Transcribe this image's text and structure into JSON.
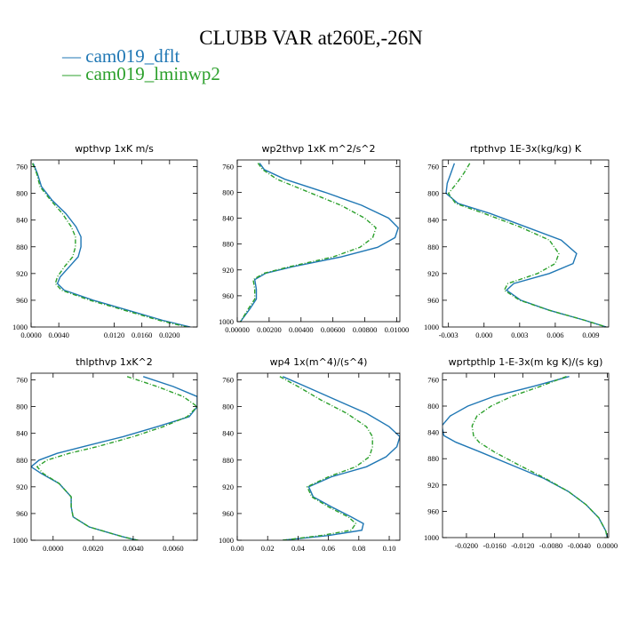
{
  "title": "CLUBB VAR at260E,-26N",
  "legend": [
    {
      "label": "— cam019_dflt",
      "color": "#1f77b4"
    },
    {
      "label": "— cam019_lminwp2",
      "color": "#2ca02c"
    }
  ],
  "chart_data": [
    {
      "type": "line",
      "title": "wpthvp   1xK m/s",
      "xlim": [
        0.0,
        0.024
      ],
      "ylim": [
        1000,
        750
      ],
      "xticks": [
        0.0,
        0.004,
        0.012,
        0.016,
        0.02
      ],
      "xtick_labels": [
        "0.0000",
        "0.0040",
        "0.0120",
        "0.0160",
        "0.0200"
      ],
      "yticks": [
        760,
        800,
        840,
        880,
        920,
        960,
        1000
      ],
      "series": [
        {
          "name": "cam019_dflt",
          "color": "#1f77b4",
          "dashed": false,
          "y": [
            755,
            770,
            790,
            810,
            830,
            850,
            865,
            880,
            895,
            910,
            925,
            935,
            945,
            960,
            975,
            990,
            1000
          ],
          "x": [
            0.0003,
            0.0009,
            0.0015,
            0.003,
            0.005,
            0.0065,
            0.0072,
            0.0072,
            0.0068,
            0.0055,
            0.0042,
            0.0038,
            0.0048,
            0.009,
            0.014,
            0.019,
            0.023
          ]
        },
        {
          "name": "cam019_lminwp2",
          "color": "#2ca02c",
          "dashed": true,
          "y": [
            755,
            770,
            790,
            810,
            830,
            850,
            865,
            880,
            895,
            910,
            925,
            935,
            945,
            960,
            975,
            990,
            1000
          ],
          "x": [
            0.0002,
            0.0008,
            0.0013,
            0.0028,
            0.0045,
            0.0058,
            0.0064,
            0.0064,
            0.006,
            0.0048,
            0.0038,
            0.0035,
            0.0044,
            0.0085,
            0.0135,
            0.0185,
            0.0225
          ]
        }
      ]
    },
    {
      "type": "line",
      "title": "wp2thvp   1xK m^2/s^2",
      "xlim": [
        0.0,
        0.0102
      ],
      "ylim": [
        1000,
        750
      ],
      "xticks": [
        0.0,
        0.002,
        0.004,
        0.006,
        0.008,
        0.01
      ],
      "xtick_labels": [
        "0.00000",
        "0.00200",
        "0.00400",
        "0.00600",
        "0.00800",
        "0.01000"
      ],
      "yticks": [
        760,
        800,
        840,
        880,
        920,
        960,
        1000
      ],
      "series": [
        {
          "name": "cam019_dflt",
          "color": "#1f77b4",
          "dashed": false,
          "y": [
            755,
            765,
            780,
            800,
            820,
            840,
            855,
            870,
            885,
            900,
            915,
            925,
            935,
            950,
            965,
            980,
            1000
          ],
          "x": [
            0.0014,
            0.0017,
            0.003,
            0.0055,
            0.0078,
            0.0095,
            0.0101,
            0.0099,
            0.0088,
            0.0065,
            0.0035,
            0.0018,
            0.0011,
            0.0012,
            0.0012,
            0.0008,
            0.0002
          ]
        },
        {
          "name": "cam019_lminwp2",
          "color": "#2ca02c",
          "dashed": true,
          "y": [
            755,
            765,
            780,
            800,
            820,
            840,
            855,
            870,
            885,
            900,
            915,
            925,
            935,
            950,
            965,
            980,
            1000
          ],
          "x": [
            0.0013,
            0.0016,
            0.0025,
            0.0045,
            0.0065,
            0.008,
            0.0087,
            0.0085,
            0.0077,
            0.006,
            0.0033,
            0.0017,
            0.001,
            0.0011,
            0.0011,
            0.0007,
            0.0002
          ]
        }
      ]
    },
    {
      "type": "line",
      "title": "rtpthvp   1E-3x(kg/kg) K",
      "xlim": [
        -0.0035,
        0.0105
      ],
      "ylim": [
        1000,
        750
      ],
      "xticks": [
        -0.003,
        0.0,
        0.003,
        0.006,
        0.009
      ],
      "xtick_labels": [
        "-0.003",
        "0.000",
        "0.003",
        "0.006",
        "0.009"
      ],
      "yticks": [
        760,
        800,
        840,
        880,
        920,
        960,
        1000
      ],
      "series": [
        {
          "name": "cam019_dflt",
          "color": "#1f77b4",
          "dashed": false,
          "y": [
            755,
            770,
            785,
            800,
            815,
            830,
            850,
            870,
            890,
            905,
            920,
            935,
            945,
            960,
            975,
            990,
            1000
          ],
          "x": [
            -0.0025,
            -0.0028,
            -0.0031,
            -0.0032,
            -0.0022,
            0.0005,
            0.0035,
            0.0065,
            0.0078,
            0.0075,
            0.0055,
            0.0025,
            0.0019,
            0.0031,
            0.0055,
            0.0085,
            0.0103
          ]
        },
        {
          "name": "cam019_lminwp2",
          "color": "#2ca02c",
          "dashed": true,
          "y": [
            755,
            770,
            785,
            800,
            815,
            830,
            850,
            870,
            890,
            905,
            920,
            935,
            945,
            960,
            975,
            990,
            1000
          ],
          "x": [
            -0.0012,
            -0.0017,
            -0.0023,
            -0.003,
            -0.0024,
            0.0,
            0.003,
            0.0055,
            0.0063,
            0.006,
            0.0045,
            0.002,
            0.0017,
            0.003,
            0.0055,
            0.0085,
            0.0103
          ]
        }
      ]
    },
    {
      "type": "line",
      "title": "thlpthvp   1xK^2",
      "xlim": [
        -0.0011,
        0.0072
      ],
      "ylim": [
        1000,
        750
      ],
      "xticks": [
        0.0,
        0.002,
        0.004,
        0.006
      ],
      "xtick_labels": [
        "0.0000",
        "0.0020",
        "0.0040",
        "0.0060"
      ],
      "yticks": [
        760,
        800,
        840,
        880,
        920,
        960,
        1000
      ],
      "series": [
        {
          "name": "cam019_dflt",
          "color": "#1f77b4",
          "dashed": false,
          "y": [
            755,
            770,
            785,
            800,
            815,
            830,
            845,
            860,
            870,
            880,
            890,
            900,
            915,
            935,
            950,
            965,
            980,
            995,
            1002
          ],
          "x": [
            0.0045,
            0.006,
            0.0072,
            0.0072,
            0.0068,
            0.0052,
            0.0035,
            0.0015,
            0.0002,
            -0.0007,
            -0.0011,
            -0.0006,
            0.0003,
            0.0009,
            0.0009,
            0.001,
            0.0018,
            0.0035,
            0.0045
          ]
        },
        {
          "name": "cam019_lminwp2",
          "color": "#2ca02c",
          "dashed": true,
          "y": [
            755,
            770,
            785,
            800,
            815,
            830,
            845,
            860,
            870,
            880,
            890,
            900,
            915,
            935,
            950,
            965,
            980,
            995,
            1002
          ],
          "x": [
            0.0037,
            0.0052,
            0.0065,
            0.0072,
            0.0067,
            0.0055,
            0.004,
            0.0022,
            0.0008,
            -0.0003,
            -0.0008,
            -0.0005,
            0.0003,
            0.0009,
            0.0009,
            0.001,
            0.0018,
            0.0035,
            0.0045
          ]
        }
      ]
    },
    {
      "type": "line",
      "title": "wp4   1x(m^4)/(s^4)",
      "xlim": [
        0.0,
        0.107
      ],
      "ylim": [
        1000,
        750
      ],
      "xticks": [
        0.0,
        0.02,
        0.04,
        0.06,
        0.08,
        0.1
      ],
      "xtick_labels": [
        "0.00",
        "0.02",
        "0.04",
        "0.06",
        "0.08",
        "0.10"
      ],
      "yticks": [
        760,
        800,
        840,
        880,
        920,
        960,
        1000
      ],
      "series": [
        {
          "name": "cam019_dflt",
          "color": "#1f77b4",
          "dashed": false,
          "y": [
            755,
            770,
            790,
            810,
            830,
            845,
            860,
            875,
            890,
            905,
            920,
            935,
            950,
            965,
            975,
            985,
            993,
            1000
          ],
          "x": [
            0.03,
            0.045,
            0.065,
            0.085,
            0.1,
            0.107,
            0.105,
            0.098,
            0.085,
            0.062,
            0.047,
            0.05,
            0.062,
            0.075,
            0.083,
            0.082,
            0.06,
            0.03
          ]
        },
        {
          "name": "cam019_lminwp2",
          "color": "#2ca02c",
          "dashed": true,
          "y": [
            755,
            770,
            790,
            810,
            830,
            845,
            860,
            875,
            890,
            905,
            920,
            935,
            950,
            965,
            975,
            985,
            993,
            1000
          ],
          "x": [
            0.028,
            0.04,
            0.055,
            0.072,
            0.085,
            0.089,
            0.089,
            0.087,
            0.078,
            0.06,
            0.046,
            0.049,
            0.06,
            0.073,
            0.078,
            0.075,
            0.055,
            0.03
          ]
        }
      ]
    },
    {
      "type": "line",
      "title": "wprtpthlp   1-E-3x(m kg K)/(s kg)",
      "xlim": [
        -0.0234,
        0.0002
      ],
      "ylim": [
        1000,
        750
      ],
      "xticks": [
        -0.02,
        -0.016,
        -0.012,
        -0.008,
        -0.004,
        0.0
      ],
      "xtick_labels": [
        "-0.0200",
        "-0.0160",
        "-0.0120",
        "-0.0080",
        "-0.0040",
        "0.0000"
      ],
      "yticks": [
        760,
        800,
        840,
        880,
        920,
        960,
        1000
      ],
      "series": [
        {
          "name": "cam019_dflt",
          "color": "#1f77b4",
          "dashed": false,
          "y": [
            755,
            770,
            785,
            800,
            815,
            830,
            845,
            855,
            870,
            890,
            910,
            930,
            950,
            970,
            990,
            1000
          ],
          "x": [
            -0.0054,
            -0.0105,
            -0.016,
            -0.0198,
            -0.0223,
            -0.0235,
            -0.0232,
            -0.0215,
            -0.018,
            -0.0135,
            -0.009,
            -0.0055,
            -0.003,
            -0.0012,
            -0.0002,
            0.0
          ]
        },
        {
          "name": "cam019_lminwp2",
          "color": "#2ca02c",
          "dashed": true,
          "y": [
            755,
            770,
            785,
            800,
            815,
            830,
            845,
            855,
            870,
            890,
            910,
            930,
            950,
            970,
            990,
            1000
          ],
          "x": [
            -0.0058,
            -0.0095,
            -0.0135,
            -0.0165,
            -0.0185,
            -0.0192,
            -0.019,
            -0.0182,
            -0.016,
            -0.0125,
            -0.0088,
            -0.0055,
            -0.003,
            -0.0012,
            -0.0002,
            0.0
          ]
        }
      ]
    }
  ]
}
